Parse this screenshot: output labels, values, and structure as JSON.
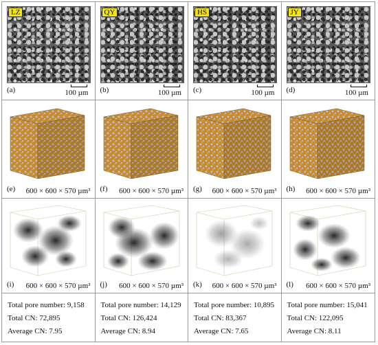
{
  "panels": [
    {
      "sample": "LZ",
      "sem_letter": "(a)",
      "sem_scale": "100 µm",
      "pore_letter": "(e)",
      "pore_dims": "600 × 600 × 570 µm³",
      "network_letter": "(i)",
      "network_dims": "600 × 600 × 570 µm³",
      "stats": {
        "total_pore_number": "Total pore number: 9,158",
        "total_cn": "Total CN: 72,895",
        "average_cn": "Average CN: 7.95"
      }
    },
    {
      "sample": "QY",
      "sem_letter": "(b)",
      "sem_scale": "100 µm",
      "pore_letter": "(f)",
      "pore_dims": "600 × 600 × 570 µm³",
      "network_letter": "(j)",
      "network_dims": "600 × 600 × 570 µm³",
      "stats": {
        "total_pore_number": "Total pore number: 14,129",
        "total_cn": "Total CN: 126,424",
        "average_cn": "Average CN: 8.94"
      }
    },
    {
      "sample": "HS",
      "sem_letter": "(c)",
      "sem_scale": "100 µm",
      "pore_letter": "(g)",
      "pore_dims": "600 × 600 × 570 µm³",
      "network_letter": "(k)",
      "network_dims": "600 × 600 × 570 µm³",
      "stats": {
        "total_pore_number": "Total pore number: 10,895",
        "total_cn": "Total CN: 83,367",
        "average_cn": "Average CN: 7.65"
      }
    },
    {
      "sample": "JY",
      "sem_letter": "(d)",
      "sem_scale": "100 µm",
      "pore_letter": "(h)",
      "pore_dims": "600 × 600 × 570 µm³",
      "network_letter": "(l)",
      "network_dims": "600 × 600 × 570 µm³",
      "stats": {
        "total_pore_number": "Total pore number: 15,041",
        "total_cn": "Total CN: 122,095",
        "average_cn": "Average CN: 8.11"
      }
    }
  ],
  "colors": {
    "label_bg": "#f2e40c",
    "pore_orange": "#c98a2e",
    "matrix_gray": "#b9bcc4",
    "network_dark": "#1a1a1a"
  }
}
